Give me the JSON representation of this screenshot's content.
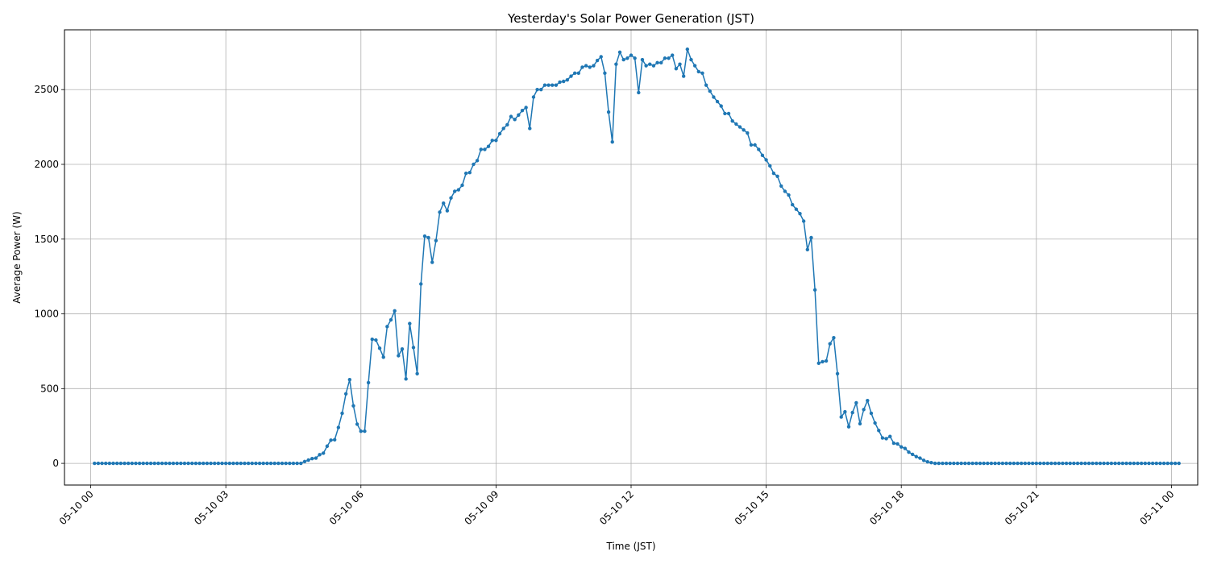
{
  "chart_data": {
    "type": "line",
    "title": "Yesterday's Solar Power Generation (JST)",
    "xlabel": "Time (JST)",
    "ylabel": "Average Power (W)",
    "x_ticks": [
      "05-10 00",
      "05-10 03",
      "05-10 06",
      "05-10 09",
      "05-10 12",
      "05-10 15",
      "05-10 18",
      "05-10 21",
      "05-11 00"
    ],
    "y_ticks": [
      0,
      500,
      1000,
      1500,
      2000,
      2500
    ],
    "ylim": [
      -145,
      2900
    ],
    "xlim": [
      "2024-05-09T23:25",
      "2024-05-11T00:35"
    ],
    "x_range": [
      "2024-05-10T00:05",
      "2024-05-11T00:00"
    ],
    "x_interval": "5 minutes",
    "grid": true,
    "colors": {
      "series": "#1f77b4",
      "grid": "#b0b0b0",
      "axes": "#000000"
    },
    "series": [
      {
        "name": "",
        "values": [
          0,
          0,
          0,
          0,
          0,
          0,
          0,
          0,
          0,
          0,
          0,
          0,
          0,
          0,
          0,
          0,
          0,
          0,
          0,
          0,
          0,
          0,
          0,
          0,
          0,
          0,
          0,
          0,
          0,
          0,
          0,
          0,
          0,
          0,
          0,
          0,
          0,
          0,
          0,
          0,
          0,
          0,
          0,
          0,
          0,
          0,
          0,
          0,
          0,
          0,
          0,
          0,
          0,
          0,
          0,
          0,
          12,
          22,
          32,
          35,
          58,
          68,
          115,
          155,
          158,
          240,
          335,
          465,
          560,
          385,
          262,
          215,
          215,
          540,
          830,
          825,
          770,
          710,
          915,
          960,
          1020,
          720,
          765,
          565,
          935,
          775,
          600,
          1200,
          1520,
          1510,
          1345,
          1490,
          1680,
          1740,
          1690,
          1775,
          1820,
          1830,
          1860,
          1940,
          1945,
          2000,
          2025,
          2100,
          2100,
          2120,
          2160,
          2160,
          2205,
          2240,
          2265,
          2320,
          2300,
          2330,
          2360,
          2380,
          2240,
          2450,
          2500,
          2500,
          2530,
          2530,
          2530,
          2530,
          2550,
          2555,
          2565,
          2590,
          2610,
          2610,
          2650,
          2660,
          2650,
          2660,
          2695,
          2720,
          2610,
          2350,
          2150,
          2670,
          2750,
          2700,
          2710,
          2730,
          2710,
          2480,
          2700,
          2660,
          2670,
          2660,
          2680,
          2680,
          2710,
          2710,
          2730,
          2640,
          2670,
          2590,
          2770,
          2700,
          2660,
          2620,
          2610,
          2530,
          2490,
          2450,
          2420,
          2390,
          2340,
          2340,
          2290,
          2270,
          2250,
          2230,
          2210,
          2130,
          2130,
          2100,
          2060,
          2030,
          1990,
          1940,
          1920,
          1855,
          1820,
          1795,
          1730,
          1700,
          1670,
          1620,
          1430,
          1510,
          1160,
          670,
          680,
          685,
          800,
          840,
          600,
          310,
          345,
          245,
          340,
          405,
          265,
          360,
          420,
          335,
          270,
          220,
          170,
          165,
          180,
          135,
          130,
          110,
          100,
          75,
          60,
          45,
          35,
          20,
          10,
          5,
          0,
          0,
          0,
          0,
          0,
          0,
          0,
          0,
          0,
          0,
          0,
          0,
          0,
          0,
          0,
          0,
          0,
          0,
          0,
          0,
          0,
          0,
          0,
          0,
          0,
          0,
          0,
          0,
          0,
          0,
          0,
          0,
          0,
          0,
          0,
          0,
          0,
          0,
          0,
          0,
          0,
          0,
          0,
          0,
          0,
          0,
          0,
          0,
          0,
          0,
          0,
          0,
          0,
          0,
          0,
          0,
          0,
          0,
          0,
          0,
          0,
          0,
          0,
          0,
          0,
          0
        ]
      }
    ]
  }
}
